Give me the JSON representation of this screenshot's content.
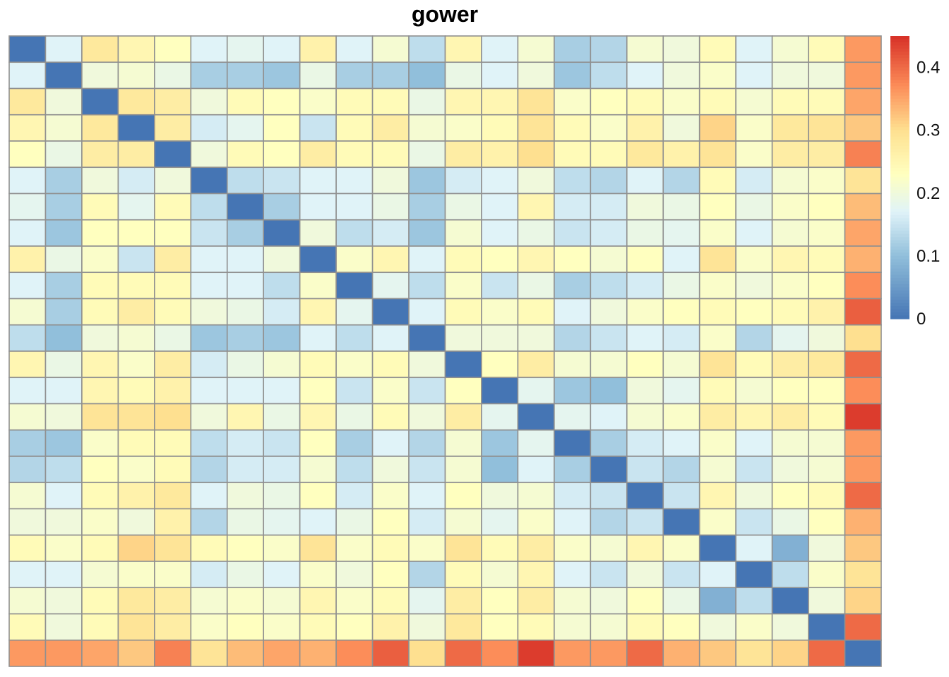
{
  "chart_data": {
    "type": "heatmap",
    "title": "gower",
    "rows": 24,
    "cols": 24,
    "colorbar": {
      "min": 0,
      "max": 0.45,
      "ticks": [
        0,
        0.1,
        0.2,
        0.3,
        0.4
      ],
      "tick_labels": [
        "0",
        "0.1",
        "0.2",
        "0.3",
        "0.4"
      ],
      "palette": [
        "#4575b4",
        "#91bfdb",
        "#e0f3f8",
        "#ffffbf",
        "#fee090",
        "#fc8d59",
        "#d73027"
      ],
      "palette_stops": [
        0,
        0.1,
        0.17,
        0.23,
        0.3,
        0.37,
        0.45
      ]
    },
    "cell_border_color": "#909090",
    "values": [
      [
        0,
        0.17,
        0.28,
        0.25,
        0.23,
        0.17,
        0.18,
        0.17,
        0.26,
        0.17,
        0.21,
        0.14,
        0.25,
        0.17,
        0.21,
        0.12,
        0.13,
        0.21,
        0.2,
        0.24,
        0.17,
        0.21,
        0.24,
        0.36
      ],
      [
        0.17,
        0,
        0.2,
        0.21,
        0.19,
        0.12,
        0.12,
        0.11,
        0.19,
        0.12,
        0.12,
        0.1,
        0.19,
        0.17,
        0.2,
        0.11,
        0.14,
        0.17,
        0.2,
        0.22,
        0.17,
        0.2,
        0.2,
        0.36
      ],
      [
        0.28,
        0.2,
        0,
        0.28,
        0.27,
        0.2,
        0.24,
        0.23,
        0.22,
        0.24,
        0.24,
        0.19,
        0.25,
        0.25,
        0.29,
        0.22,
        0.23,
        0.24,
        0.22,
        0.24,
        0.21,
        0.24,
        0.24,
        0.35
      ],
      [
        0.25,
        0.21,
        0.28,
        0,
        0.27,
        0.16,
        0.18,
        0.23,
        0.15,
        0.24,
        0.27,
        0.21,
        0.22,
        0.24,
        0.29,
        0.24,
        0.22,
        0.26,
        0.2,
        0.31,
        0.22,
        0.28,
        0.29,
        0.32
      ],
      [
        0.23,
        0.19,
        0.27,
        0.27,
        0,
        0.2,
        0.24,
        0.23,
        0.27,
        0.24,
        0.24,
        0.19,
        0.27,
        0.26,
        0.3,
        0.24,
        0.24,
        0.28,
        0.26,
        0.29,
        0.22,
        0.27,
        0.27,
        0.38
      ],
      [
        0.17,
        0.12,
        0.2,
        0.16,
        0.2,
        0,
        0.14,
        0.15,
        0.17,
        0.17,
        0.2,
        0.11,
        0.16,
        0.17,
        0.2,
        0.14,
        0.13,
        0.17,
        0.13,
        0.24,
        0.16,
        0.21,
        0.22,
        0.29
      ],
      [
        0.18,
        0.12,
        0.24,
        0.18,
        0.24,
        0.14,
        0,
        0.12,
        0.17,
        0.17,
        0.19,
        0.12,
        0.19,
        0.17,
        0.25,
        0.16,
        0.16,
        0.2,
        0.19,
        0.23,
        0.19,
        0.22,
        0.23,
        0.33
      ],
      [
        0.17,
        0.11,
        0.23,
        0.23,
        0.23,
        0.15,
        0.12,
        0,
        0.2,
        0.14,
        0.16,
        0.11,
        0.21,
        0.17,
        0.19,
        0.15,
        0.16,
        0.19,
        0.18,
        0.22,
        0.17,
        0.21,
        0.22,
        0.35
      ],
      [
        0.26,
        0.19,
        0.22,
        0.15,
        0.27,
        0.17,
        0.17,
        0.2,
        0,
        0.22,
        0.25,
        0.17,
        0.24,
        0.23,
        0.25,
        0.23,
        0.21,
        0.23,
        0.17,
        0.29,
        0.22,
        0.25,
        0.24,
        0.34
      ],
      [
        0.17,
        0.12,
        0.24,
        0.24,
        0.24,
        0.17,
        0.17,
        0.14,
        0.22,
        0,
        0.18,
        0.14,
        0.22,
        0.15,
        0.19,
        0.12,
        0.14,
        0.16,
        0.19,
        0.22,
        0.2,
        0.22,
        0.23,
        0.37
      ],
      [
        0.21,
        0.12,
        0.24,
        0.27,
        0.24,
        0.2,
        0.19,
        0.16,
        0.25,
        0.18,
        0,
        0.17,
        0.24,
        0.22,
        0.24,
        0.17,
        0.2,
        0.22,
        0.23,
        0.24,
        0.23,
        0.24,
        0.26,
        0.41
      ],
      [
        0.14,
        0.1,
        0.2,
        0.21,
        0.19,
        0.11,
        0.12,
        0.11,
        0.17,
        0.14,
        0.17,
        0,
        0.2,
        0.2,
        0.2,
        0.13,
        0.15,
        0.17,
        0.16,
        0.22,
        0.13,
        0.18,
        0.2,
        0.3
      ],
      [
        0.25,
        0.19,
        0.25,
        0.22,
        0.27,
        0.16,
        0.19,
        0.21,
        0.24,
        0.22,
        0.24,
        0.2,
        0,
        0.23,
        0.27,
        0.21,
        0.21,
        0.23,
        0.21,
        0.29,
        0.24,
        0.27,
        0.28,
        0.4
      ],
      [
        0.17,
        0.17,
        0.25,
        0.24,
        0.26,
        0.17,
        0.17,
        0.17,
        0.23,
        0.15,
        0.22,
        0.15,
        0.23,
        0,
        0.18,
        0.11,
        0.1,
        0.2,
        0.18,
        0.24,
        0.21,
        0.23,
        0.23,
        0.37
      ],
      [
        0.21,
        0.2,
        0.29,
        0.29,
        0.3,
        0.2,
        0.25,
        0.19,
        0.25,
        0.19,
        0.24,
        0.2,
        0.27,
        0.18,
        0,
        0.18,
        0.17,
        0.21,
        0.22,
        0.27,
        0.25,
        0.27,
        0.24,
        0.44
      ],
      [
        0.12,
        0.11,
        0.22,
        0.24,
        0.24,
        0.14,
        0.16,
        0.15,
        0.23,
        0.12,
        0.17,
        0.13,
        0.21,
        0.11,
        0.18,
        0,
        0.12,
        0.16,
        0.17,
        0.22,
        0.17,
        0.21,
        0.21,
        0.36
      ],
      [
        0.13,
        0.14,
        0.23,
        0.22,
        0.24,
        0.13,
        0.16,
        0.16,
        0.21,
        0.14,
        0.2,
        0.15,
        0.21,
        0.1,
        0.17,
        0.12,
        0,
        0.15,
        0.13,
        0.21,
        0.15,
        0.2,
        0.21,
        0.36
      ],
      [
        0.21,
        0.17,
        0.24,
        0.26,
        0.28,
        0.17,
        0.2,
        0.19,
        0.23,
        0.16,
        0.22,
        0.17,
        0.23,
        0.2,
        0.21,
        0.16,
        0.15,
        0,
        0.15,
        0.25,
        0.2,
        0.23,
        0.24,
        0.4
      ],
      [
        0.2,
        0.2,
        0.22,
        0.2,
        0.26,
        0.13,
        0.19,
        0.18,
        0.17,
        0.19,
        0.23,
        0.16,
        0.21,
        0.18,
        0.22,
        0.17,
        0.13,
        0.15,
        0,
        0.22,
        0.15,
        0.19,
        0.23,
        0.34
      ],
      [
        0.24,
        0.22,
        0.24,
        0.31,
        0.29,
        0.24,
        0.23,
        0.22,
        0.29,
        0.22,
        0.24,
        0.22,
        0.29,
        0.24,
        0.27,
        0.22,
        0.21,
        0.25,
        0.22,
        0,
        0.17,
        0.08,
        0.2,
        0.32
      ],
      [
        0.17,
        0.17,
        0.21,
        0.22,
        0.22,
        0.16,
        0.19,
        0.17,
        0.22,
        0.2,
        0.23,
        0.13,
        0.24,
        0.21,
        0.25,
        0.17,
        0.15,
        0.2,
        0.15,
        0.17,
        0,
        0.14,
        0.22,
        0.29
      ],
      [
        0.21,
        0.2,
        0.24,
        0.28,
        0.27,
        0.21,
        0.22,
        0.21,
        0.25,
        0.22,
        0.24,
        0.18,
        0.27,
        0.23,
        0.27,
        0.21,
        0.2,
        0.23,
        0.19,
        0.08,
        0.14,
        0,
        0.2,
        0.31
      ],
      [
        0.24,
        0.2,
        0.24,
        0.29,
        0.27,
        0.22,
        0.23,
        0.22,
        0.24,
        0.23,
        0.26,
        0.2,
        0.28,
        0.23,
        0.24,
        0.21,
        0.21,
        0.24,
        0.23,
        0.2,
        0.22,
        0.2,
        0,
        0.4
      ],
      [
        0.36,
        0.36,
        0.35,
        0.32,
        0.38,
        0.29,
        0.33,
        0.35,
        0.34,
        0.37,
        0.41,
        0.3,
        0.4,
        0.37,
        0.44,
        0.36,
        0.36,
        0.4,
        0.34,
        0.32,
        0.29,
        0.31,
        0.4,
        0
      ]
    ]
  }
}
